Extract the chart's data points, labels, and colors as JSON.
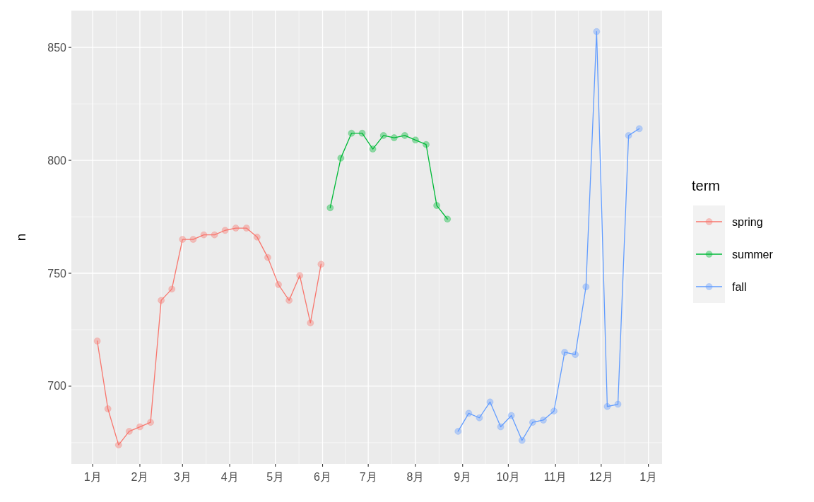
{
  "chart_data": {
    "type": "line",
    "ylabel": "n",
    "legend_title": "term",
    "ylim": [
      665.6,
      866.3
    ],
    "yticks": [
      700,
      750,
      800,
      850
    ],
    "xlim": [
      "2000-12-18",
      "2002-01-10"
    ],
    "xticks": [
      {
        "value": "2001-01-01",
        "label": "1月"
      },
      {
        "value": "--02-01",
        "label": "2月"
      },
      {
        "value": "--03-01",
        "label": "3月"
      },
      {
        "value": "--04-01",
        "label": "4月"
      },
      {
        "value": "--05-01",
        "label": "5月"
      },
      {
        "value": "--06-01",
        "label": "6月"
      },
      {
        "value": "--07-01",
        "label": "7月"
      },
      {
        "value": "--08-01",
        "label": "8月"
      },
      {
        "value": "--09-01",
        "label": "9月"
      },
      {
        "value": "--10-01",
        "label": "10月"
      },
      {
        "value": "--11-01",
        "label": "11月"
      },
      {
        "value": "--12-01",
        "label": "12月"
      },
      {
        "value": "2002-01-01",
        "label": "1月"
      }
    ],
    "grid": true,
    "legend": "right",
    "marker": "circle",
    "line_style": "solid",
    "series": [
      {
        "name": "spring",
        "color": "#f8766d",
        "x": [
          "--01-04",
          "--01-11",
          "--01-18",
          "--01-25",
          "--02-01",
          "--02-08",
          "--02-15",
          "--02-22",
          "--03-01",
          "--03-08",
          "--03-15",
          "--03-22",
          "--03-29",
          "--04-05",
          "--04-12",
          "--04-19",
          "--04-26",
          "--05-03",
          "--05-10",
          "--05-17",
          "--05-24",
          "--05-31"
        ],
        "values": [
          720,
          690,
          674,
          680,
          682,
          684,
          738,
          743,
          765,
          765,
          767,
          767,
          769,
          770,
          770,
          766,
          757,
          745,
          738,
          749,
          728,
          754
        ]
      },
      {
        "name": "summer",
        "color": "#00ba38",
        "x": [
          "--06-06",
          "--06-13",
          "--06-20",
          "--06-27",
          "--07-04",
          "--07-11",
          "--07-18",
          "--07-25",
          "--08-01",
          "--08-08",
          "--08-15",
          "--08-22"
        ],
        "values": [
          779,
          801,
          812,
          812,
          805,
          811,
          810,
          811,
          809,
          807,
          780,
          774
        ]
      },
      {
        "name": "fall",
        "color": "#619cff",
        "x": [
          "--08-29",
          "--09-05",
          "--09-12",
          "--09-19",
          "--09-26",
          "--10-03",
          "--10-10",
          "--10-17",
          "--10-24",
          "--10-31",
          "--11-07",
          "--11-14",
          "--11-21",
          "--11-28",
          "--12-05",
          "--12-12",
          "--12-19",
          "--12-26"
        ],
        "values": [
          680,
          688,
          686,
          693,
          682,
          687,
          676,
          684,
          685,
          689,
          715,
          714,
          744,
          857,
          691,
          692,
          811,
          814
        ]
      }
    ]
  }
}
